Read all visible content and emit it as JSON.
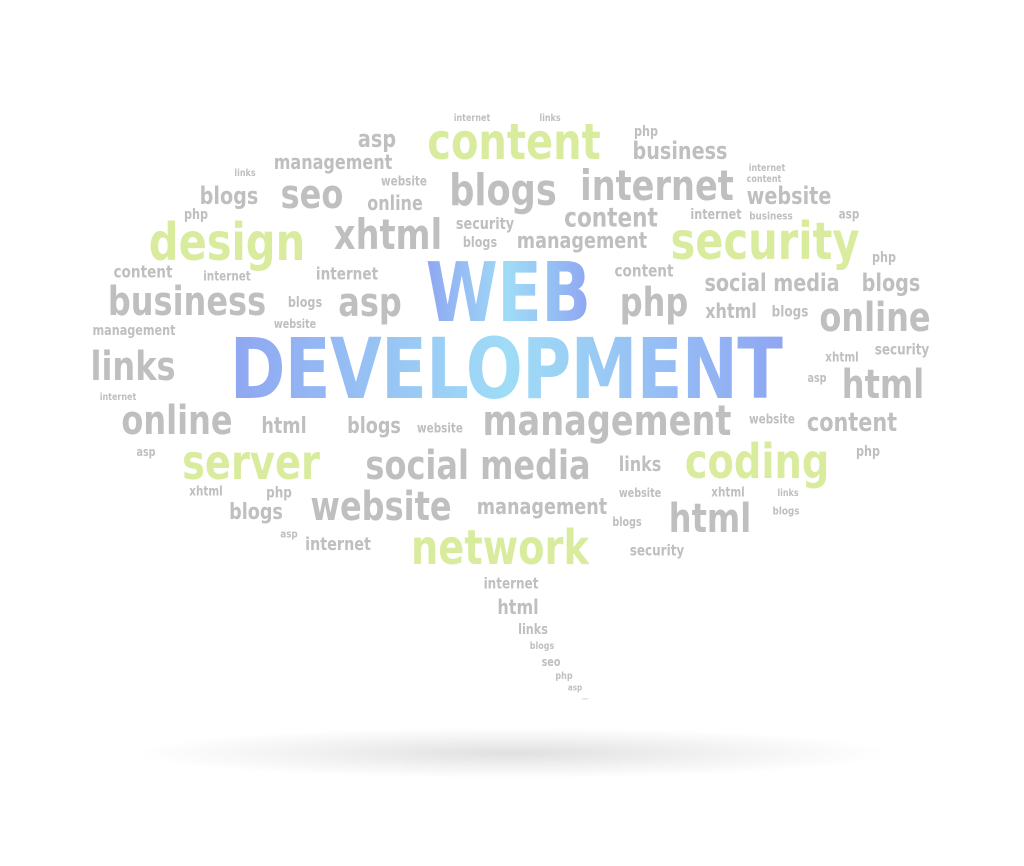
{
  "colors": {
    "gray": "#bfbfbf",
    "lime": "#d9ec9e",
    "blue_1": "#8fa6f2",
    "blue_2": "#9fdcf6"
  },
  "title": {
    "line1": "WEB",
    "line2": "DEVELOPMENT"
  },
  "words": [
    {
      "key": "w1",
      "text": "internet"
    },
    {
      "key": "w2",
      "text": "links"
    },
    {
      "key": "w3",
      "text": "asp"
    },
    {
      "key": "w4",
      "text": "content"
    },
    {
      "key": "w5",
      "text": "php"
    },
    {
      "key": "w6",
      "text": "management"
    },
    {
      "key": "w7",
      "text": "business"
    },
    {
      "key": "w8",
      "text": "links"
    },
    {
      "key": "w9",
      "text": "internet"
    },
    {
      "key": "w10",
      "text": "content"
    },
    {
      "key": "w11",
      "text": "blogs"
    },
    {
      "key": "w12",
      "text": "seo"
    },
    {
      "key": "w13",
      "text": "website"
    },
    {
      "key": "w14",
      "text": "blogs"
    },
    {
      "key": "w15",
      "text": "internet"
    },
    {
      "key": "w16",
      "text": "website"
    },
    {
      "key": "w17",
      "text": "online"
    },
    {
      "key": "w18",
      "text": "php"
    },
    {
      "key": "w19",
      "text": "security"
    },
    {
      "key": "w20",
      "text": "content"
    },
    {
      "key": "w21",
      "text": "internet"
    },
    {
      "key": "w22",
      "text": "business"
    },
    {
      "key": "w23",
      "text": "asp"
    },
    {
      "key": "w24",
      "text": "design"
    },
    {
      "key": "w25",
      "text": "xhtml"
    },
    {
      "key": "w26",
      "text": "blogs"
    },
    {
      "key": "w27",
      "text": "management"
    },
    {
      "key": "w28",
      "text": "security"
    },
    {
      "key": "w29",
      "text": "php"
    },
    {
      "key": "w30",
      "text": "content"
    },
    {
      "key": "w31",
      "text": "internet"
    },
    {
      "key": "w32",
      "text": "internet"
    },
    {
      "key": "w33",
      "text": "content"
    },
    {
      "key": "w34",
      "text": "social media"
    },
    {
      "key": "w35",
      "text": "blogs"
    },
    {
      "key": "w36",
      "text": "business"
    },
    {
      "key": "w37",
      "text": "asp"
    },
    {
      "key": "w38",
      "text": "blogs"
    },
    {
      "key": "w39",
      "text": "php"
    },
    {
      "key": "w40",
      "text": "xhtml"
    },
    {
      "key": "w41",
      "text": "blogs"
    },
    {
      "key": "w42",
      "text": "online"
    },
    {
      "key": "w43",
      "text": "website"
    },
    {
      "key": "w44",
      "text": "management"
    },
    {
      "key": "w45",
      "text": "links"
    },
    {
      "key": "w46",
      "text": "security"
    },
    {
      "key": "w47",
      "text": "xhtml"
    },
    {
      "key": "w48",
      "text": "asp"
    },
    {
      "key": "w49",
      "text": "html"
    },
    {
      "key": "w50",
      "text": "internet"
    },
    {
      "key": "w51",
      "text": "online"
    },
    {
      "key": "w52",
      "text": "html"
    },
    {
      "key": "w53",
      "text": "blogs"
    },
    {
      "key": "w54",
      "text": "website"
    },
    {
      "key": "w55",
      "text": "management"
    },
    {
      "key": "w56",
      "text": "website"
    },
    {
      "key": "w57",
      "text": "content"
    },
    {
      "key": "w58",
      "text": "asp"
    },
    {
      "key": "w59",
      "text": "server"
    },
    {
      "key": "w60",
      "text": "social media"
    },
    {
      "key": "w61",
      "text": "links"
    },
    {
      "key": "w62",
      "text": "coding"
    },
    {
      "key": "w63",
      "text": "php"
    },
    {
      "key": "w64",
      "text": "xhtml"
    },
    {
      "key": "w65",
      "text": "php"
    },
    {
      "key": "w66",
      "text": "website"
    },
    {
      "key": "w67",
      "text": "website"
    },
    {
      "key": "w68",
      "text": "xhtml"
    },
    {
      "key": "w69",
      "text": "links"
    },
    {
      "key": "w70",
      "text": "blogs"
    },
    {
      "key": "w71",
      "text": "management"
    },
    {
      "key": "w72",
      "text": "blogs"
    },
    {
      "key": "w73",
      "text": "html"
    },
    {
      "key": "w74",
      "text": "blogs"
    },
    {
      "key": "w75",
      "text": "asp"
    },
    {
      "key": "w76",
      "text": "internet"
    },
    {
      "key": "w77",
      "text": "network"
    },
    {
      "key": "w78",
      "text": "security"
    },
    {
      "key": "w79",
      "text": "internet"
    },
    {
      "key": "w80",
      "text": "html"
    },
    {
      "key": "w81",
      "text": "links"
    },
    {
      "key": "w82",
      "text": "blogs"
    },
    {
      "key": "w83",
      "text": "seo"
    },
    {
      "key": "w84",
      "text": "php"
    },
    {
      "key": "w85",
      "text": "asp"
    },
    {
      "key": "w86",
      "text": "..."
    }
  ]
}
